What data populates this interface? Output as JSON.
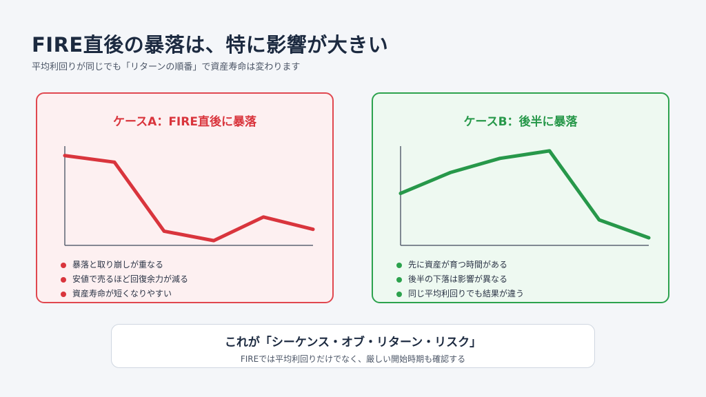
{
  "header": {
    "title": "FIRE直後の暴落は、特に影響が大きい",
    "subtitle": "平均利回りが同じでも「リターンの順番」で資産寿命は変わります"
  },
  "cases": [
    {
      "title": "ケースA：FIRE直後に暴落",
      "color": "#d9353d",
      "bullets": [
        "暴落と取り崩しが重なる",
        "安値で売るほど回復余力が減る",
        "資産寿命が短くなりやすい"
      ]
    },
    {
      "title": "ケースB：後半に暴落",
      "color": "#27984a",
      "bullets": [
        "先に資産が育つ時間がある",
        "後半の下落は影響が異なる",
        "同じ平均利回りでも結果が違う"
      ]
    }
  ],
  "chart_data": [
    {
      "type": "line",
      "series": [
        {
          "values": [
            90,
            83,
            10,
            0,
            25,
            12
          ]
        }
      ],
      "ylim": [
        -5,
        100
      ]
    },
    {
      "type": "line",
      "series": [
        {
          "values": [
            50,
            72,
            87,
            95,
            22,
            3
          ]
        }
      ],
      "ylim": [
        -5,
        100
      ]
    }
  ],
  "footer": {
    "title": "これが「シーケンス・オブ・リターン・リスク」",
    "subtitle": "FIREでは平均利回りだけでなく、厳しい開始時期も確認する"
  }
}
